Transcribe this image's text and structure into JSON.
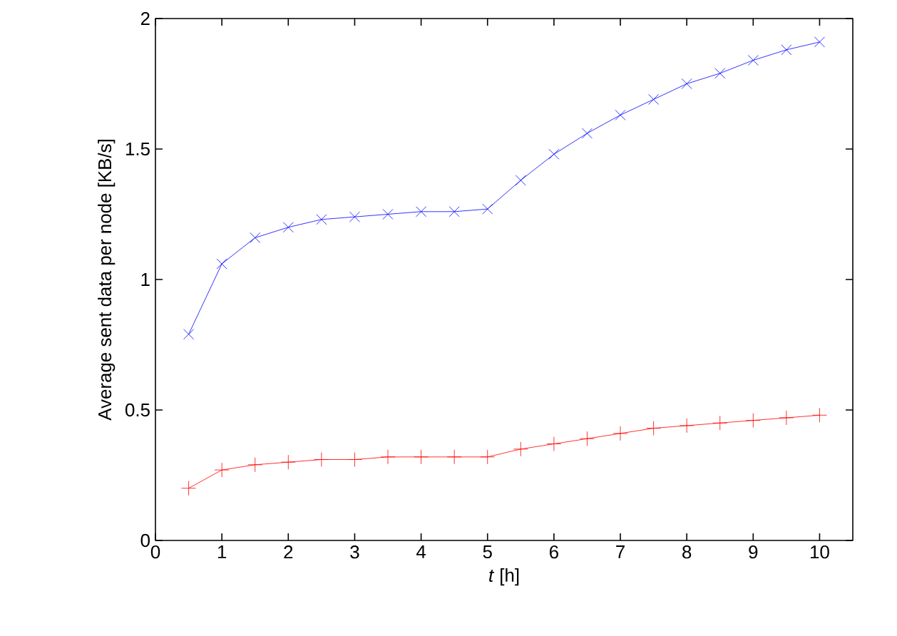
{
  "chart_data": {
    "type": "line",
    "xlabel": "*t* [h]",
    "ylabel": "Average sent data per node [KB/s]",
    "x": [
      0.5,
      1,
      1.5,
      2,
      2.5,
      3,
      3.5,
      4,
      4.5,
      5,
      5.5,
      6,
      6.5,
      7,
      7.5,
      8,
      8.5,
      9,
      9.5,
      10
    ],
    "series": [
      {
        "color": "#ff0000",
        "marker": "plus",
        "values": [
          0.2,
          0.27,
          0.29,
          0.3,
          0.31,
          0.31,
          0.32,
          0.32,
          0.32,
          0.32,
          0.35,
          0.37,
          0.39,
          0.41,
          0.43,
          0.44,
          0.45,
          0.46,
          0.47,
          0.48
        ]
      },
      {
        "color": "#0000ff",
        "marker": "cross",
        "values": [
          0.79,
          1.06,
          1.16,
          1.2,
          1.23,
          1.24,
          1.25,
          1.26,
          1.26,
          1.27,
          1.38,
          1.48,
          1.56,
          1.63,
          1.69,
          1.75,
          1.79,
          1.84,
          1.88,
          1.91
        ]
      }
    ],
    "xlim": [
      0,
      10.5
    ],
    "xticks": [
      0,
      1,
      2,
      3,
      4,
      5,
      6,
      7,
      8,
      9,
      10
    ],
    "ylim": [
      0,
      2
    ],
    "yticks": [
      0,
      0.5,
      1,
      1.5,
      2
    ],
    "grid": false,
    "line_style": "solid"
  }
}
